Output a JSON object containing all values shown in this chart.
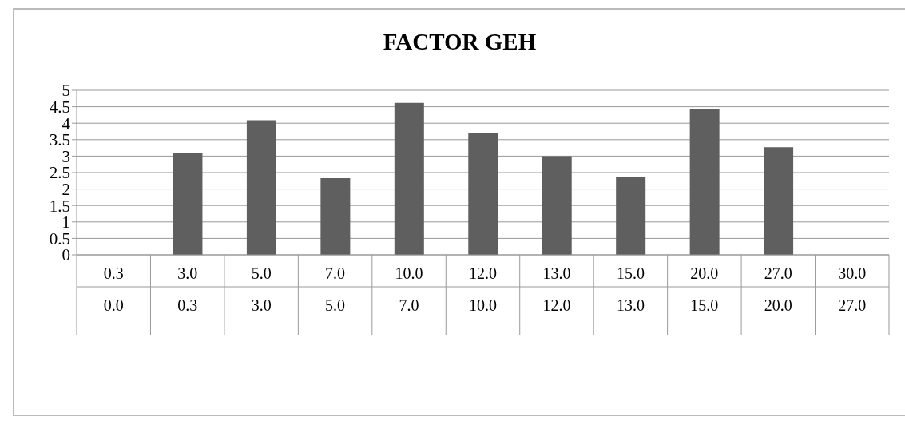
{
  "chart_data": {
    "type": "bar",
    "title": "FACTOR GEH",
    "categories": [
      "0.3\n0.0",
      "3.0\n0.3",
      "5.0\n3.0",
      "7.0\n5.0",
      "10.0\n7.0",
      "12.0\n10.0",
      "13.0\n12.0",
      "15.0\n13.0",
      "20.0\n15.0",
      "27.0\n20.0",
      "30.0\n27.0"
    ],
    "values": [
      null,
      3.1,
      4.09,
      2.33,
      4.62,
      3.7,
      3.0,
      2.36,
      4.42,
      3.27,
      null
    ],
    "color": "#5f5f5f",
    "ylim": [
      0,
      5
    ],
    "yticks": [
      0,
      0.5,
      1,
      1.5,
      2,
      2.5,
      3,
      3.5,
      4,
      4.5,
      5
    ],
    "grid": "y"
  }
}
